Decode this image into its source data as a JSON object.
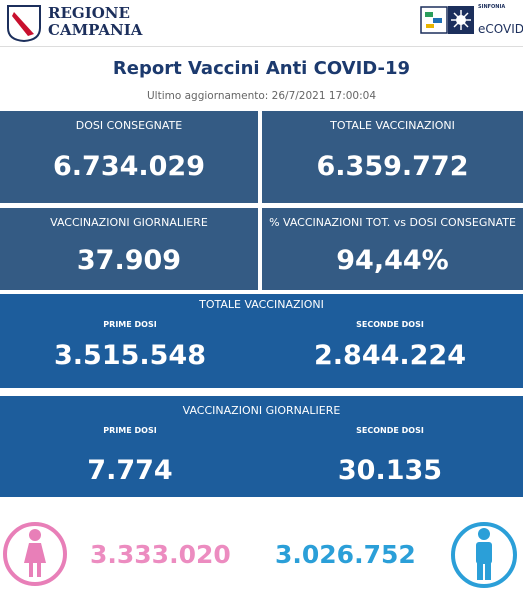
{
  "header": {
    "region_line1": "REGIONE",
    "region_line2": "CAMPANIA",
    "brand_small": "SINFONIA",
    "brand": "eCOVID"
  },
  "title": "Report Vaccini Anti COVID-19",
  "updated": "Ultimo aggiornamento: 26/7/2021  17:00:04",
  "tiles": [
    {
      "label": "DOSI  CONSEGNATE",
      "value": "6.734.029"
    },
    {
      "label": "TOTALE VACCINAZIONI",
      "value": "6.359.772"
    },
    {
      "label": "VACCINAZIONI GIORNALIERE",
      "value": "37.909"
    },
    {
      "label": "% VACCINAZIONI TOT. vs DOSI CONSEGNATE",
      "value": "94,44%"
    }
  ],
  "blocks": [
    {
      "title": "TOTALE VACCINAZIONI",
      "items": [
        {
          "label": "PRIME DOSI",
          "value": "3.515.548"
        },
        {
          "label": "SECONDE DOSI",
          "value": "2.844.224"
        }
      ]
    },
    {
      "title": "VACCINAZIONI GIORNALIERE",
      "items": [
        {
          "label": "PRIME DOSI",
          "value": "7.774"
        },
        {
          "label": "SECONDE DOSI",
          "value": "30.135"
        }
      ]
    }
  ],
  "gender": {
    "female": "3.333.020",
    "male": "3.026.752"
  }
}
